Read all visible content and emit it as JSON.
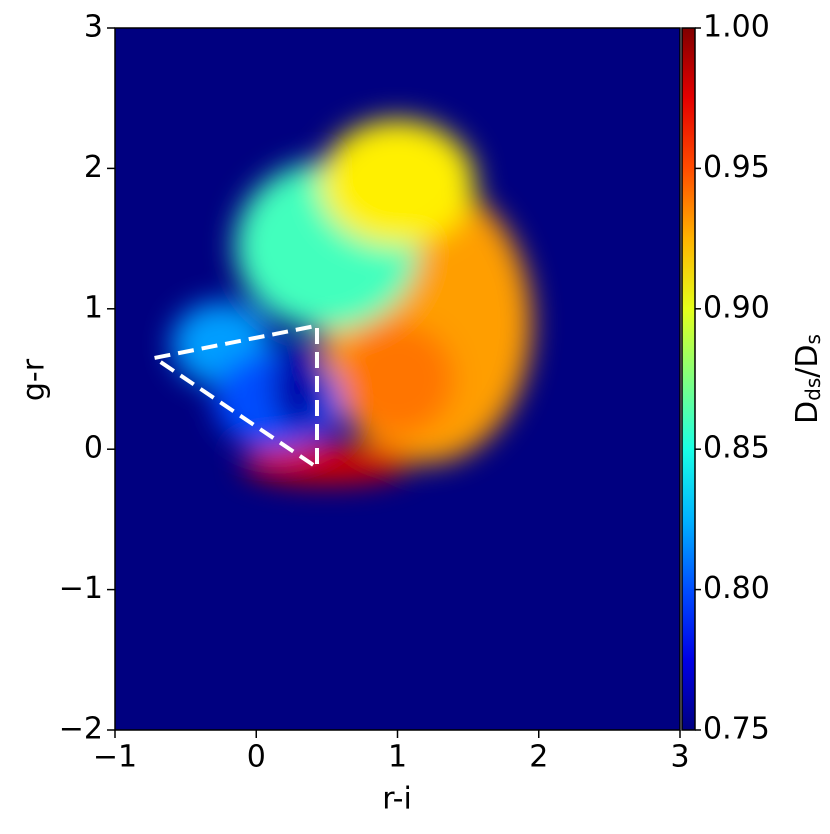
{
  "chart_data": {
    "type": "heatmap",
    "xlabel": "r-i",
    "ylabel": "g-r",
    "colorbar_label_parts": [
      "D",
      "ds",
      "/D",
      "s"
    ],
    "xlim": [
      -1,
      3
    ],
    "ylim": [
      -2,
      3
    ],
    "xticks": [
      {
        "value": -1,
        "label": "−1"
      },
      0,
      1,
      2,
      3
    ],
    "yticks": [
      {
        "value": -2,
        "label": "−2"
      },
      {
        "value": -1,
        "label": "−1"
      },
      0,
      1,
      2,
      3
    ],
    "clim": [
      0.75,
      1.0
    ],
    "cticks": [
      0.75,
      {
        "value": 0.8,
        "label": "0.80"
      },
      0.85,
      {
        "value": 0.9,
        "label": "0.90"
      },
      0.95,
      {
        "value": 1.0,
        "label": "1.00"
      }
    ],
    "colormap": "jet",
    "background": 0.75,
    "regions": [
      {
        "x": 1.2,
        "y": 0.9,
        "rx": 0.75,
        "ry": 1.0,
        "value": 0.93
      },
      {
        "x": 0.5,
        "y": 1.45,
        "rx": 0.65,
        "ry": 0.6,
        "value": 0.86
      },
      {
        "x": 1.0,
        "y": 1.9,
        "rx": 0.55,
        "ry": 0.45,
        "value": 0.91
      },
      {
        "x": 1.0,
        "y": 0.5,
        "rx": 0.4,
        "ry": 0.4,
        "value": 0.94
      },
      {
        "x": -0.25,
        "y": 0.75,
        "rx": 0.35,
        "ry": 0.3,
        "value": 0.82
      },
      {
        "x": 0.5,
        "y": -0.1,
        "rx": 0.6,
        "ry": 0.15,
        "value": 0.98
      },
      {
        "x": 0.15,
        "y": 0.35,
        "rx": 0.45,
        "ry": 0.35,
        "value": 0.8
      },
      {
        "x": 0.3,
        "y": 0.45,
        "rx": 0.18,
        "ry": 0.32,
        "value": 0.76
      }
    ],
    "polygon": {
      "x": [
        -0.72,
        0.43,
        0.43,
        -0.72
      ],
      "y": [
        0.65,
        0.88,
        -0.13,
        0.65
      ],
      "color": "#ffffff"
    }
  }
}
